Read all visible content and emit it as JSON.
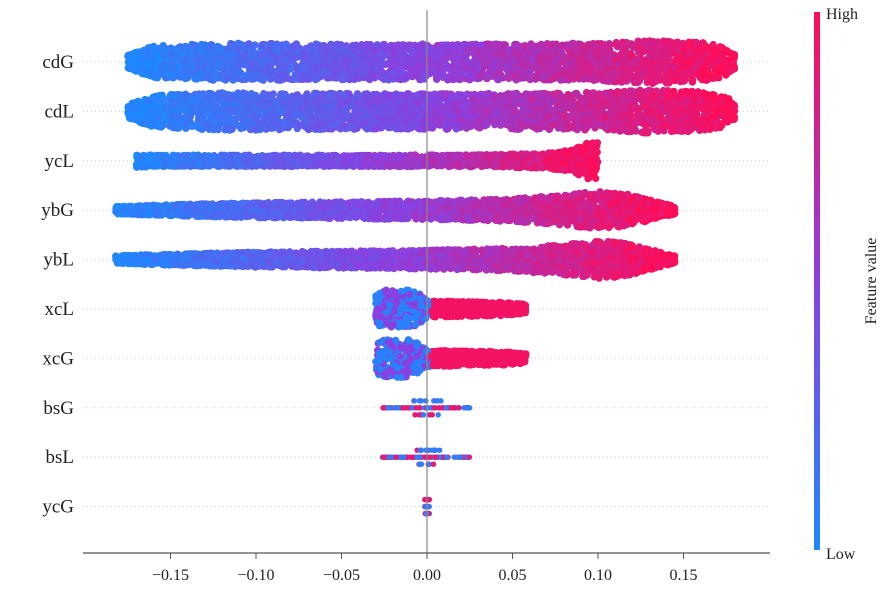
{
  "chart_data": {
    "type": "scatter",
    "subtype": "shap-beeswarm-summary",
    "title": "",
    "xlabel": "",
    "ylabel": "",
    "xlim": [
      -0.2,
      0.2
    ],
    "xticks": [
      -0.15,
      -0.1,
      -0.05,
      0.0,
      0.05,
      0.1,
      0.15
    ],
    "xtick_labels": [
      "−0.15",
      "−0.10",
      "−0.05",
      "0.00",
      "0.05",
      "0.10",
      "0.15"
    ],
    "colorbar": {
      "label": "Feature value",
      "high_label": "High",
      "low_label": "Low",
      "low_color": "#1e88ff",
      "high_color": "#ff0d57"
    },
    "features": [
      {
        "name": "cdG",
        "min": -0.175,
        "max": 0.18,
        "width_profile": [
          [
            -0.175,
            0.35
          ],
          [
            -0.16,
            0.85
          ],
          [
            -0.12,
            1.0
          ],
          [
            -0.05,
            0.95
          ],
          [
            0.0,
            0.95
          ],
          [
            0.05,
            0.95
          ],
          [
            0.1,
            1.0
          ],
          [
            0.13,
            1.15
          ],
          [
            0.16,
            1.05
          ],
          [
            0.175,
            0.8
          ],
          [
            0.18,
            0.4
          ]
        ]
      },
      {
        "name": "cdL",
        "min": -0.175,
        "max": 0.18,
        "width_profile": [
          [
            -0.175,
            0.35
          ],
          [
            -0.16,
            0.85
          ],
          [
            -0.12,
            1.0
          ],
          [
            -0.05,
            0.95
          ],
          [
            0.0,
            0.95
          ],
          [
            0.05,
            0.95
          ],
          [
            0.1,
            1.0
          ],
          [
            0.13,
            1.15
          ],
          [
            0.16,
            1.05
          ],
          [
            0.175,
            0.8
          ],
          [
            0.18,
            0.4
          ]
        ]
      },
      {
        "name": "ycL",
        "min": -0.17,
        "max": 0.1,
        "width_profile": [
          [
            -0.17,
            0.35
          ],
          [
            -0.16,
            0.3
          ],
          [
            -0.05,
            0.3
          ],
          [
            0.03,
            0.32
          ],
          [
            0.07,
            0.4
          ],
          [
            0.085,
            0.6
          ],
          [
            0.092,
            0.9
          ],
          [
            0.097,
            1.0
          ],
          [
            0.1,
            1.0
          ]
        ]
      },
      {
        "name": "ybG",
        "min": -0.182,
        "max": 0.145,
        "width_profile": [
          [
            -0.182,
            0.2
          ],
          [
            -0.15,
            0.3
          ],
          [
            -0.1,
            0.4
          ],
          [
            -0.05,
            0.45
          ],
          [
            0.0,
            0.5
          ],
          [
            0.05,
            0.6
          ],
          [
            0.08,
            0.8
          ],
          [
            0.1,
            1.0
          ],
          [
            0.115,
            0.9
          ],
          [
            0.13,
            0.55
          ],
          [
            0.145,
            0.2
          ]
        ]
      },
      {
        "name": "ybL",
        "min": -0.182,
        "max": 0.145,
        "width_profile": [
          [
            -0.182,
            0.2
          ],
          [
            -0.15,
            0.3
          ],
          [
            -0.1,
            0.4
          ],
          [
            -0.05,
            0.45
          ],
          [
            0.0,
            0.5
          ],
          [
            0.05,
            0.6
          ],
          [
            0.08,
            0.8
          ],
          [
            0.1,
            1.0
          ],
          [
            0.115,
            0.9
          ],
          [
            0.13,
            0.55
          ],
          [
            0.145,
            0.2
          ]
        ]
      },
      {
        "name": "xcL",
        "min": -0.03,
        "max": 0.058,
        "width_profile": [
          [
            -0.03,
            0.8
          ],
          [
            -0.025,
            1.0
          ],
          [
            -0.01,
            1.0
          ],
          [
            -0.005,
            0.9
          ],
          [
            -0.002,
            0.6
          ],
          [
            0.0,
            0.45
          ],
          [
            0.02,
            0.4
          ],
          [
            0.045,
            0.35
          ],
          [
            0.058,
            0.25
          ]
        ]
      },
      {
        "name": "xcG",
        "min": -0.03,
        "max": 0.058,
        "width_profile": [
          [
            -0.03,
            0.8
          ],
          [
            -0.025,
            1.0
          ],
          [
            -0.01,
            1.0
          ],
          [
            -0.005,
            0.9
          ],
          [
            -0.002,
            0.6
          ],
          [
            0.0,
            0.45
          ],
          [
            0.02,
            0.4
          ],
          [
            0.045,
            0.35
          ],
          [
            0.058,
            0.25
          ]
        ]
      },
      {
        "name": "bsG",
        "min": -0.027,
        "max": 0.025,
        "width_profile": [
          [
            -0.027,
            0.15
          ],
          [
            -0.01,
            0.2
          ],
          [
            -0.003,
            0.35
          ],
          [
            0.0,
            0.55
          ],
          [
            0.003,
            0.35
          ],
          [
            0.01,
            0.2
          ],
          [
            0.025,
            0.15
          ]
        ]
      },
      {
        "name": "bsL",
        "min": -0.027,
        "max": 0.025,
        "width_profile": [
          [
            -0.027,
            0.15
          ],
          [
            -0.01,
            0.2
          ],
          [
            -0.003,
            0.35
          ],
          [
            0.0,
            0.55
          ],
          [
            0.003,
            0.35
          ],
          [
            0.01,
            0.2
          ],
          [
            0.025,
            0.15
          ]
        ]
      },
      {
        "name": "ycG",
        "min": -0.0015,
        "max": 0.0015,
        "width_profile": [
          [
            -0.0015,
            0.45
          ],
          [
            0.0015,
            0.45
          ]
        ]
      }
    ]
  }
}
